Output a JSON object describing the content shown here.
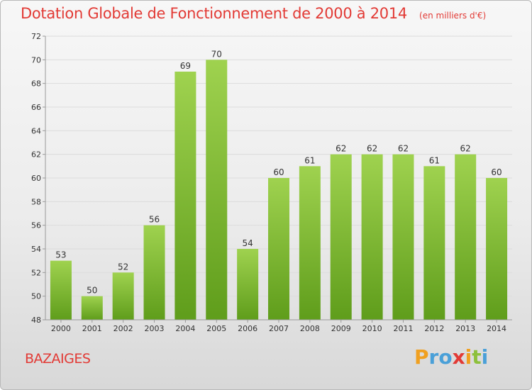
{
  "title": "Dotation Globale de Fonctionnement de 2000 à 2014",
  "unit_note": "(en milliers d'€)",
  "commune": "BAZAIGES",
  "logo": {
    "letters": [
      "P",
      "r",
      "o",
      "x",
      "i",
      "t",
      "i"
    ],
    "colors": [
      "#f0a020",
      "#4aa0d8",
      "#4aa0d8",
      "#e23a35",
      "#f0a020",
      "#8dc03c",
      "#4aa0d8"
    ]
  },
  "colors": {
    "bar_top": "#9fd24f",
    "bar_bottom": "#5f9d1b",
    "title": "#e23a35"
  },
  "chart_data": {
    "type": "bar",
    "categories": [
      "2000",
      "2001",
      "2002",
      "2003",
      "2004",
      "2005",
      "2006",
      "2007",
      "2008",
      "2009",
      "2010",
      "2011",
      "2012",
      "2013",
      "2014"
    ],
    "values": [
      53,
      50,
      52,
      56,
      69,
      70,
      54,
      60,
      61,
      62,
      62,
      62,
      61,
      62,
      60
    ],
    "ylim": [
      48,
      72
    ],
    "yticks": [
      48,
      50,
      52,
      54,
      56,
      58,
      60,
      62,
      64,
      66,
      68,
      70,
      72
    ],
    "grid": true
  }
}
